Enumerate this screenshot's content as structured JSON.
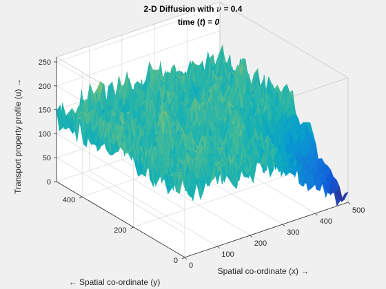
{
  "chart_data": {
    "type": "surface",
    "title_prefix": "2-D Diffusion with ",
    "title_symbol": "ν",
    "title_suffix": " = 0.4",
    "subtitle_prefix": "time (",
    "subtitle_var": "t",
    "subtitle_mid": ") = ",
    "subtitle_value": "0",
    "xlabel": "Spatial co-ordinate (x) →",
    "ylabel": "← Spatial co-ordinate (y)",
    "zlabel": "Transport property profile (u) →",
    "xlim": [
      0,
      500
    ],
    "ylim": [
      0,
      500
    ],
    "zlim": [
      0,
      260
    ],
    "x_ticks": [
      0,
      100,
      200,
      300,
      400,
      500
    ],
    "y_ticks": [
      0,
      200,
      400
    ],
    "z_ticks": [
      0,
      50,
      100,
      150,
      200,
      250
    ],
    "x_tick_labels": [
      "0",
      "100",
      "200",
      "300",
      "400",
      "500"
    ],
    "y_tick_labels": [
      "0",
      "200",
      "400"
    ],
    "z_tick_labels": [
      "0",
      "50",
      "100",
      "150",
      "200",
      "250"
    ],
    "surface": {
      "base_level": 140,
      "noise_amplitude": 70,
      "low_corner": "x=500, y=0",
      "colormap": "parula"
    },
    "grid": true,
    "box": true
  }
}
